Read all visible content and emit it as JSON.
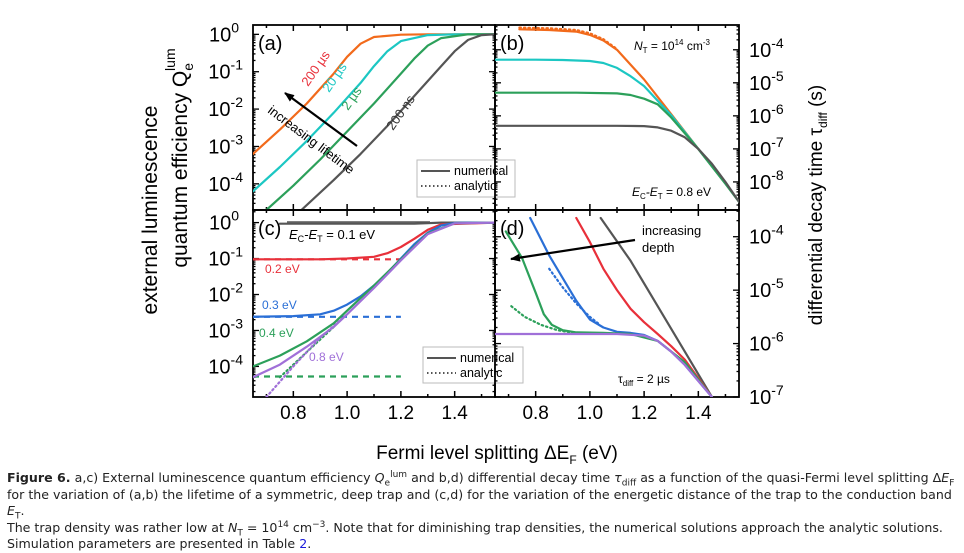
{
  "figure": {
    "left_axis_label_line1": "external luminescence",
    "left_axis_label_line2": "quantum efficiency Q",
    "left_axis_label_sub": "e",
    "left_axis_label_sup": "lum",
    "right_axis_label": "differential decay time τ",
    "right_axis_label_sub": "diff",
    "right_axis_label_unit": " (s)",
    "x_axis_label": "Fermi level splitting ΔE",
    "x_axis_label_sub": "F",
    "x_axis_label_unit": " (eV)"
  },
  "chart_data": [
    {
      "id": "a",
      "panel_label": "(a)",
      "type": "line",
      "yscale": "log",
      "xlim": [
        0.65,
        1.55
      ],
      "ylim_exp": [
        -4.7,
        0.25
      ],
      "xticks": [
        "0.8",
        "1.0",
        "1.2",
        "1.4"
      ],
      "xtick_values": [
        0.8,
        1.0,
        1.2,
        1.4
      ],
      "yticks": [
        {
          "base": "10",
          "exp": "0"
        },
        {
          "base": "10",
          "exp": "-1"
        },
        {
          "base": "10",
          "exp": "-2"
        },
        {
          "base": "10",
          "exp": "-3"
        },
        {
          "base": "10",
          "exp": "-4"
        }
      ],
      "ytick_exps": [
        0,
        -1,
        -2,
        -3,
        -4
      ],
      "series": [
        {
          "name": "200 µs",
          "color": "#f26a1b",
          "x": [
            0.65,
            0.75,
            0.85,
            0.95,
            1.0,
            1.05,
            1.1,
            1.2,
            1.3,
            1.4,
            1.55
          ],
          "log_y": [
            -3.2,
            -2.55,
            -1.85,
            -1.05,
            -0.6,
            -0.25,
            -0.07,
            -0.01,
            0.0,
            0.0,
            0.0
          ]
        },
        {
          "name": "20 µs",
          "color": "#1cc7c3",
          "x": [
            0.65,
            0.75,
            0.85,
            0.95,
            1.05,
            1.1,
            1.15,
            1.2,
            1.3,
            1.4,
            1.55
          ],
          "log_y": [
            -4.2,
            -3.55,
            -2.85,
            -2.1,
            -1.3,
            -0.85,
            -0.45,
            -0.18,
            -0.02,
            0.0,
            0.0
          ]
        },
        {
          "name": "2 µs",
          "color": "#2ca05a",
          "x": [
            0.7,
            0.8,
            0.9,
            1.0,
            1.1,
            1.2,
            1.25,
            1.3,
            1.35,
            1.45,
            1.55
          ],
          "log_y": [
            -4.7,
            -4.05,
            -3.35,
            -2.6,
            -1.85,
            -1.05,
            -0.65,
            -0.3,
            -0.1,
            0.0,
            0.0
          ]
        },
        {
          "name": "200 ns",
          "color": "#555555",
          "x": [
            0.83,
            0.95,
            1.05,
            1.15,
            1.25,
            1.35,
            1.4,
            1.45,
            1.5,
            1.55
          ],
          "log_y": [
            -4.7,
            -3.9,
            -3.2,
            -2.45,
            -1.65,
            -0.85,
            -0.45,
            -0.15,
            -0.02,
            0.0
          ]
        }
      ],
      "annotations": [
        {
          "text": "200 µs",
          "color": "#e8303a"
        },
        {
          "text": "20 µs",
          "color": "#1cc7c3"
        },
        {
          "text": "2 µs",
          "color": "#2ca05a"
        },
        {
          "text": "200 ns",
          "color": "#333333"
        },
        {
          "text": "increasing lifetime",
          "color": "#000000"
        }
      ],
      "legend": {
        "position": "bottom-right",
        "entries": [
          {
            "label": "numerical",
            "style": "solid"
          },
          {
            "label": "analytic",
            "style": "dotted"
          }
        ]
      }
    },
    {
      "id": "b",
      "panel_label": "(b)",
      "type": "line",
      "yscale": "log",
      "xlim": [
        0.65,
        1.55
      ],
      "ylim_exp": [
        -8.85,
        -3.25
      ],
      "yaxis_side": "right",
      "yticks": [
        {
          "base": "10",
          "exp": "-4"
        },
        {
          "base": "10",
          "exp": "-5"
        },
        {
          "base": "10",
          "exp": "-6"
        },
        {
          "base": "10",
          "exp": "-7"
        },
        {
          "base": "10",
          "exp": "-8"
        }
      ],
      "ytick_exps": [
        -4,
        -5,
        -6,
        -7,
        -8
      ],
      "series": [
        {
          "name": "200 µs",
          "color": "#f26a1b",
          "x": [
            0.74,
            0.85,
            0.95,
            1.0,
            1.05,
            1.1,
            1.2,
            1.3,
            1.4,
            1.5,
            1.55
          ],
          "log_y": [
            -3.38,
            -3.4,
            -3.45,
            -3.55,
            -3.72,
            -4.0,
            -4.9,
            -5.95,
            -7.0,
            -8.05,
            -8.6
          ]
        },
        {
          "name": "20 µs",
          "color": "#1cc7c3",
          "x": [
            0.65,
            0.8,
            0.9,
            1.0,
            1.05,
            1.1,
            1.15,
            1.2,
            1.3,
            1.4,
            1.5,
            1.55
          ],
          "log_y": [
            -4.3,
            -4.3,
            -4.31,
            -4.34,
            -4.4,
            -4.55,
            -4.8,
            -5.1,
            -5.98,
            -7.0,
            -8.05,
            -8.6
          ]
        },
        {
          "name": "2 µs",
          "color": "#2ca05a",
          "x": [
            0.65,
            0.8,
            0.95,
            1.1,
            1.15,
            1.2,
            1.25,
            1.3,
            1.4,
            1.5,
            1.55
          ],
          "log_y": [
            -5.3,
            -5.3,
            -5.3,
            -5.32,
            -5.37,
            -5.48,
            -5.65,
            -6.05,
            -7.0,
            -8.05,
            -8.6
          ]
        },
        {
          "name": "200 ns",
          "color": "#555555",
          "x": [
            0.65,
            0.9,
            1.1,
            1.2,
            1.25,
            1.3,
            1.35,
            1.4,
            1.45,
            1.5,
            1.55
          ],
          "log_y": [
            -6.3,
            -6.3,
            -6.3,
            -6.31,
            -6.35,
            -6.45,
            -6.65,
            -7.0,
            -7.45,
            -8.0,
            -8.6
          ]
        },
        {
          "name": "200 µs analytic",
          "color": "#f26a1b",
          "dotted": true,
          "x": [
            0.74,
            0.85,
            0.95,
            1.0,
            1.05,
            1.1
          ],
          "log_y": [
            -3.33,
            -3.35,
            -3.4,
            -3.5,
            -3.68,
            -3.98
          ]
        }
      ],
      "annotations": [
        {
          "text": "N",
          "sub": "T",
          "rest": " = 10",
          "sup": "14",
          "unit": " cm",
          "unit_sup": "-3"
        },
        {
          "text": "E",
          "sub": "C",
          "mid": "-E",
          "sub2": "T",
          "rest": " = 0.8 eV"
        }
      ]
    },
    {
      "id": "c",
      "panel_label": "(c)",
      "type": "line",
      "yscale": "log",
      "xlim": [
        0.65,
        1.55
      ],
      "ylim_exp": [
        -4.85,
        0.35
      ],
      "xticks": [
        "0.8",
        "1.0",
        "1.2",
        "1.4"
      ],
      "xtick_values": [
        0.8,
        1.0,
        1.2,
        1.4
      ],
      "yticks": [
        {
          "base": "10",
          "exp": "0"
        },
        {
          "base": "10",
          "exp": "-1"
        },
        {
          "base": "10",
          "exp": "-2"
        },
        {
          "base": "10",
          "exp": "-3"
        },
        {
          "base": "10",
          "exp": "-4"
        }
      ],
      "ytick_exps": [
        0,
        -1,
        -2,
        -3,
        -4
      ],
      "series": [
        {
          "name": "0.1 eV",
          "color": "#555555",
          "x": [
            0.75,
            1.0,
            1.25,
            1.35,
            1.55
          ],
          "log_y": [
            -0.03,
            -0.03,
            -0.03,
            0.0,
            0.0
          ]
        },
        {
          "name": "0.2 eV",
          "color": "#e8303a",
          "x": [
            0.65,
            0.9,
            1.0,
            1.1,
            1.15,
            1.2,
            1.25,
            1.3,
            1.35,
            1.55
          ],
          "log_y": [
            -1.02,
            -1.02,
            -1.0,
            -0.95,
            -0.85,
            -0.68,
            -0.45,
            -0.2,
            -0.05,
            0.0
          ]
        },
        {
          "name": "0.3 eV",
          "color": "#2a6fd6",
          "x": [
            0.65,
            0.8,
            0.9,
            0.95,
            1.0,
            1.05,
            1.1,
            1.15,
            1.2,
            1.25,
            1.3,
            1.35,
            1.4,
            1.55
          ],
          "log_y": [
            -2.62,
            -2.6,
            -2.55,
            -2.45,
            -2.28,
            -2.05,
            -1.75,
            -1.4,
            -1.0,
            -0.6,
            -0.28,
            -0.08,
            -0.01,
            0.0
          ]
        },
        {
          "name": "0.4 eV",
          "color": "#2ca05a",
          "x": [
            0.65,
            0.75,
            0.85,
            0.95,
            1.0,
            1.1,
            1.2,
            1.3,
            1.4,
            1.55
          ],
          "log_y": [
            -4.0,
            -3.7,
            -3.3,
            -2.8,
            -2.45,
            -1.75,
            -1.02,
            -0.3,
            -0.02,
            0.0
          ]
        },
        {
          "name": "0.8 eV",
          "color": "#a070d8",
          "x": [
            0.65,
            0.75,
            0.85,
            0.95,
            1.0,
            1.1,
            1.2,
            1.3,
            1.4,
            1.55
          ],
          "log_y": [
            -4.3,
            -3.95,
            -3.45,
            -2.9,
            -2.55,
            -1.82,
            -1.05,
            -0.32,
            -0.02,
            0.0
          ]
        }
      ],
      "analytic_series": [
        {
          "name": "0.2 eV analytic",
          "color": "#e8303a",
          "style": "dashed",
          "x": [
            0.65,
            1.2
          ],
          "log_y": [
            -1.02,
            -1.02
          ]
        },
        {
          "name": "0.3 eV analytic",
          "color": "#2a6fd6",
          "style": "dashed",
          "x": [
            0.65,
            1.2
          ],
          "log_y": [
            -2.62,
            -2.62
          ]
        },
        {
          "name": "0.4 eV analytic",
          "color": "#2ca05a",
          "style": "dashed",
          "x": [
            0.65,
            1.2
          ],
          "log_y": [
            -4.28,
            -4.28
          ]
        },
        {
          "name": "0.4 eV analytic slope",
          "color": "#2ca05a",
          "style": "dotted",
          "x": [
            0.75,
            0.85,
            0.95
          ],
          "log_y": [
            -4.3,
            -3.6,
            -2.9
          ]
        },
        {
          "name": "0.8 eV analytic",
          "color": "#a070d8",
          "style": "dotted",
          "x": [
            0.7,
            0.8,
            0.9,
            1.0
          ],
          "log_y": [
            -4.85,
            -4.0,
            -3.2,
            -2.55
          ]
        }
      ],
      "annotations": [
        {
          "text": "E",
          "sub": "C",
          "mid": "-E",
          "sub2": "T",
          "rest": " = 0.1 eV",
          "color": "#000000"
        },
        {
          "text": "0.2 eV",
          "color": "#e8303a"
        },
        {
          "text": "0.3 eV",
          "color": "#2a6fd6"
        },
        {
          "text": "0.4 eV",
          "color": "#2ca05a"
        },
        {
          "text": "0.8 eV",
          "color": "#a070d8"
        }
      ],
      "legend": {
        "position": "bottom-right",
        "entries": [
          {
            "label": "numerical",
            "style": "solid"
          },
          {
            "label": "analytic",
            "style": "dotted"
          }
        ]
      }
    },
    {
      "id": "d",
      "panel_label": "(d)",
      "type": "line",
      "yscale": "log",
      "xlim": [
        0.65,
        1.55
      ],
      "ylim_exp": [
        -7.0,
        -3.5
      ],
      "yaxis_side": "right",
      "xticks": [
        "0.8",
        "1.0",
        "1.2",
        "1.4"
      ],
      "xtick_values": [
        0.8,
        1.0,
        1.2,
        1.4
      ],
      "yticks": [
        {
          "base": "10",
          "exp": "-4"
        },
        {
          "base": "10",
          "exp": "-5"
        },
        {
          "base": "10",
          "exp": "-6"
        },
        {
          "base": "10",
          "exp": "-7"
        }
      ],
      "ytick_exps": [
        -4,
        -5,
        -6,
        -7
      ],
      "series": [
        {
          "name": "0.1 eV",
          "color": "#555555",
          "x": [
            1.04,
            1.15,
            1.25,
            1.35,
            1.45
          ],
          "log_y": [
            -3.65,
            -4.45,
            -5.3,
            -6.15,
            -7.0
          ]
        },
        {
          "name": "0.2 eV",
          "color": "#e8303a",
          "x": [
            0.95,
            1.0,
            1.05,
            1.1,
            1.15,
            1.2,
            1.25,
            1.3,
            1.35,
            1.45
          ],
          "log_y": [
            -3.65,
            -4.1,
            -4.6,
            -5.0,
            -5.35,
            -5.6,
            -5.82,
            -6.05,
            -6.3,
            -7.0
          ]
        },
        {
          "name": "0.3 eV",
          "color": "#2a6fd6",
          "x": [
            0.78,
            0.85,
            0.95,
            1.0,
            1.05,
            1.1,
            1.15,
            1.2,
            1.25,
            1.3,
            1.35,
            1.45
          ],
          "log_y": [
            -3.65,
            -4.35,
            -5.2,
            -5.55,
            -5.7,
            -5.78,
            -5.8,
            -5.84,
            -5.95,
            -6.15,
            -6.4,
            -7.0
          ]
        },
        {
          "name": "0.4 eV",
          "color": "#2ca05a",
          "x": [
            0.69,
            0.75,
            0.8,
            0.83,
            0.86,
            0.9,
            0.95,
            1.05,
            1.15,
            1.25,
            1.35,
            1.45
          ],
          "log_y": [
            -3.9,
            -4.4,
            -5.05,
            -5.45,
            -5.65,
            -5.75,
            -5.79,
            -5.8,
            -5.82,
            -5.95,
            -6.35,
            -7.0
          ]
        },
        {
          "name": "0.8 eV",
          "color": "#a070d8",
          "x": [
            0.65,
            0.9,
            1.1,
            1.2,
            1.25,
            1.3,
            1.35,
            1.4,
            1.45
          ],
          "log_y": [
            -5.82,
            -5.82,
            -5.82,
            -5.85,
            -5.95,
            -6.15,
            -6.4,
            -6.7,
            -7.0
          ]
        }
      ],
      "analytic_series": [
        {
          "name": "0.3 eV analytic",
          "color": "#2a6fd6",
          "style": "dotted",
          "x": [
            0.85,
            0.9,
            0.95,
            1.0,
            1.03
          ],
          "log_y": [
            -4.6,
            -4.95,
            -5.25,
            -5.5,
            -5.62
          ]
        },
        {
          "name": "0.4 eV analytic",
          "color": "#2ca05a",
          "style": "dotted",
          "x": [
            0.71,
            0.76,
            0.82,
            0.88,
            0.94
          ],
          "log_y": [
            -5.3,
            -5.5,
            -5.65,
            -5.75,
            -5.8
          ]
        }
      ],
      "annotations": [
        {
          "text": "increasing",
          "color": "#000000"
        },
        {
          "text": "depth",
          "color": "#000000"
        },
        {
          "text": "τ",
          "sub": "diff",
          "rest": " = 2 µs"
        }
      ]
    }
  ],
  "caption": {
    "lead": "Figure 6.",
    "line1_a": " a,c) External luminescence quantum efficiency ",
    "q_sym": "Q",
    "q_sub": "e",
    "q_sup": "lum",
    "line1_b": " and b,d) differential decay time ",
    "tau_sym": "τ",
    "tau_sub": "diff",
    "line1_c": " as a function of the quasi-Fermi level splitting Δ",
    "ef_sym": "E",
    "ef_sub": "F",
    "line2_a": "for the variation of (a,b) the lifetime of a symmetric, deep trap and (c,d) for the variation of the energetic distance of the trap to the conduction band ",
    "et_sym": "E",
    "et_sub": "T",
    "line2_b": ".",
    "line3_a": "The trap density was rather low at ",
    "nt_sym": "N",
    "nt_sub": "T",
    "line3_b": " = 10",
    "nt_exp": "14",
    "line3_c": " cm",
    "nt_unit_exp": "−3",
    "line3_d": ". Note that for diminishing trap densities, the numerical solutions approach the analytic solutions.",
    "line4_a": "Simulation parameters are presented in Table ",
    "table_ref": "2",
    "line4_b": "."
  }
}
